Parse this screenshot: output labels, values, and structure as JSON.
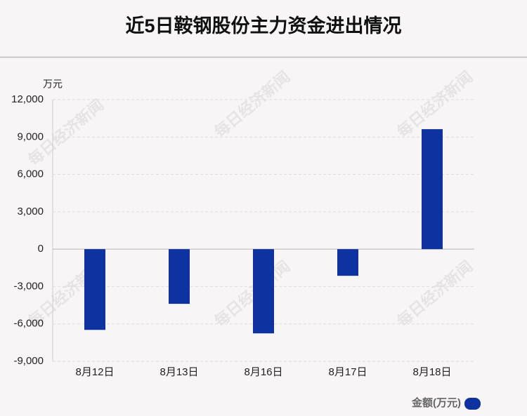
{
  "chart_data": {
    "type": "bar",
    "title": "近5日鞍钢股份主力资金进出情况",
    "y_axis_label": "万元",
    "watermark": "每日经济新闻",
    "categories": [
      "8月12日",
      "8月13日",
      "8月16日",
      "8月17日",
      "8月18日"
    ],
    "series": [
      {
        "name": "金额(万元)",
        "color": "#0e33a0",
        "values": [
          -6480,
          -4390,
          -6760,
          -2140,
          9630
        ]
      }
    ],
    "ylim": [
      -9000,
      12000
    ],
    "yticks": [
      {
        "value": -9000,
        "label": "-9,000"
      },
      {
        "value": -6000,
        "label": "-6,000"
      },
      {
        "value": -3000,
        "label": "-3,000"
      },
      0,
      {
        "value": 3000,
        "label": "3,000"
      },
      {
        "value": 6000,
        "label": "6,000"
      },
      {
        "value": 9000,
        "label": "9,000"
      },
      {
        "value": 12000,
        "label": "12,000"
      }
    ],
    "grid": true,
    "legend": "bottom-right"
  }
}
